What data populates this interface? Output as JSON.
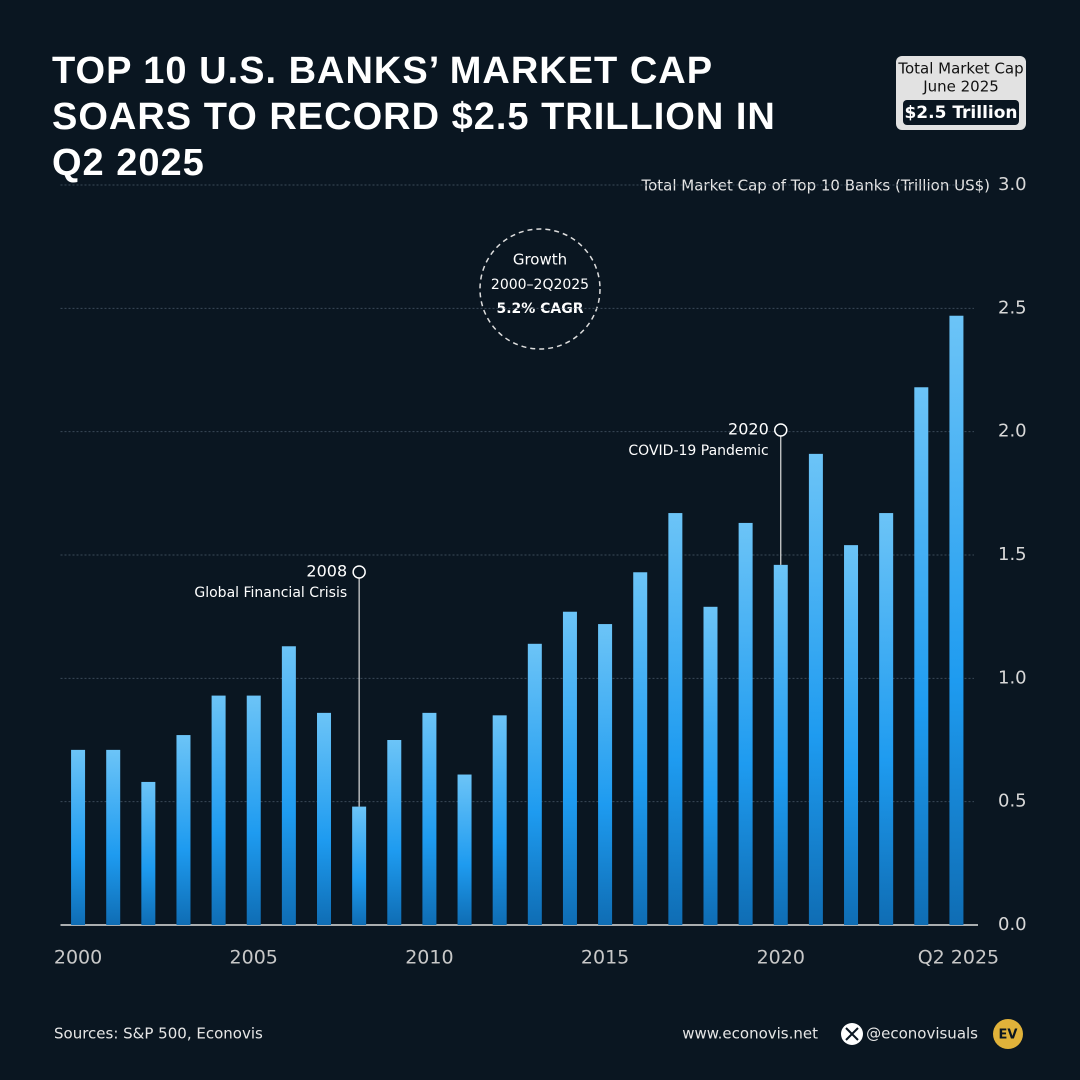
{
  "chart_data": {
    "type": "bar",
    "title": "TOP 10 U.S. BANKS’ MARKET CAP SOARS TO RECORD $2.5 TRILLION IN Q2 2025",
    "y_label": "Total Market Cap of Top 10 Banks (Trillion US$)",
    "categories": [
      "2000",
      null,
      null,
      null,
      null,
      "2005",
      null,
      null,
      null,
      null,
      "2010",
      null,
      null,
      null,
      null,
      "2015",
      null,
      null,
      null,
      null,
      "2020",
      null,
      null,
      null,
      null,
      "Q2 2025"
    ],
    "values": [
      0.71,
      0.71,
      0.58,
      0.77,
      0.93,
      0.93,
      1.13,
      0.86,
      0.48,
      0.75,
      0.86,
      0.61,
      0.85,
      1.14,
      1.27,
      1.22,
      1.43,
      1.67,
      1.29,
      1.63,
      1.46,
      1.91,
      1.54,
      1.67,
      2.18,
      2.47
    ],
    "color": "#1e9bf0",
    "ylim": [
      0,
      3
    ],
    "yticks": [
      {
        "value": 0,
        "label": "0.0"
      },
      0.5,
      {
        "value": 1,
        "label": "1.0"
      },
      1.5,
      {
        "value": 2,
        "label": "2.0"
      },
      2.5,
      {
        "value": 3,
        "label": "3.0"
      }
    ],
    "grid": true,
    "badge": {
      "line1": "Total Market Cap",
      "line2": "June 2025",
      "value": "$2.5 Trillion"
    },
    "growth": {
      "line1": "Growth",
      "line2": "2000–2Q2025",
      "line3": "5.2% CAGR"
    },
    "annotations": [
      {
        "year": "2008",
        "text": "Global Financial Crisis"
      },
      {
        "year": "2020",
        "text": "COVID-19 Pandemic"
      }
    ]
  },
  "footer": {
    "source": "Sources: S&P 500, Econovis",
    "website": "www.econovis.net",
    "handle": "@econovisuals",
    "logo": "EV"
  }
}
